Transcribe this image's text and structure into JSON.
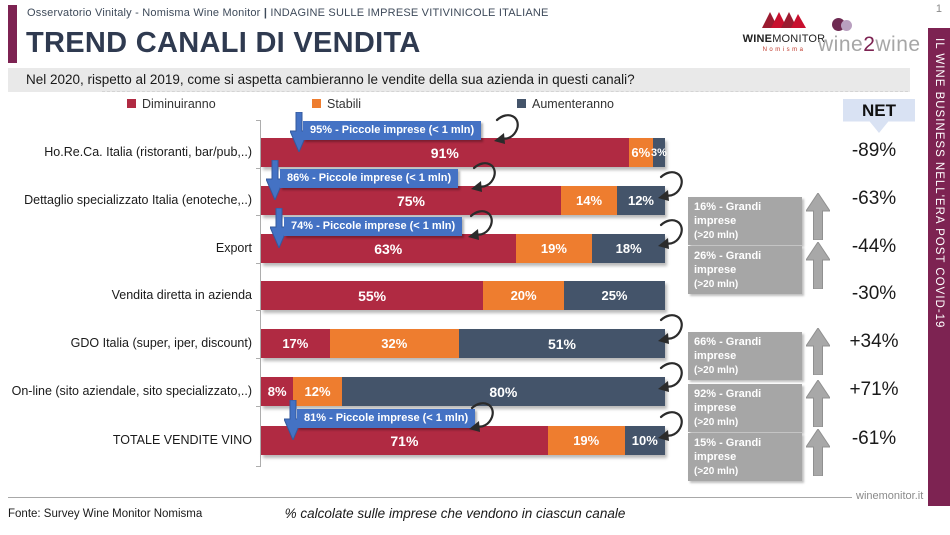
{
  "header": {
    "left": "Osservatorio Vinitaly - Nomisma Wine Monitor",
    "separator": "|",
    "right": "INDAGINE SULLE IMPRESE VITIVINICOLE ITALIANE",
    "page_number": "1"
  },
  "title": "TREND CANALI DI VENDITA",
  "question": "Nel 2020, rispetto al 2019, come si aspetta cambieranno le vendite della sua azienda in questi canali?",
  "logos": {
    "winemonitor": {
      "name_bold": "WINE",
      "name_rest": "MONITOR",
      "subtitle": "Nomisma"
    },
    "wine2wine": {
      "part1": "wine",
      "part2": "2",
      "part3": "wine"
    }
  },
  "sidebar": {
    "text": "IL WINE BUSINESS NELL'ERA POST COVID-19"
  },
  "net_header": "NET",
  "legend": [
    {
      "label": "Diminuiranno",
      "color": "#B02A42"
    },
    {
      "label": "Stabili",
      "color": "#EE7D2F"
    },
    {
      "label": "Aumenteranno",
      "color": "#44546A"
    }
  ],
  "chart_data": {
    "type": "bar",
    "orientation": "horizontal",
    "stacked": true,
    "unit": "percent",
    "xlim": [
      0,
      100
    ],
    "categories": [
      "Ho.Re.Ca. Italia (ristoranti, bar/pub,..)",
      "Dettaglio specializzato Italia (enoteche,..)",
      "Export",
      "Vendita diretta in azienda",
      "GDO Italia (super, iper, discount)",
      "On-line (sito aziendale, sito specializzato,..)",
      "TOTALE VENDITE VINO"
    ],
    "series": [
      {
        "name": "Diminuiranno",
        "color": "#B02A42",
        "values": [
          91,
          75,
          63,
          55,
          17,
          8,
          71
        ]
      },
      {
        "name": "Stabili",
        "color": "#EE7D2F",
        "values": [
          6,
          14,
          19,
          20,
          32,
          12,
          19
        ]
      },
      {
        "name": "Aumenteranno",
        "color": "#44546A",
        "values": [
          3,
          12,
          18,
          25,
          51,
          80,
          10
        ]
      }
    ],
    "net_values": [
      "-89%",
      "-63%",
      "-44%",
      "-30%",
      "+34%",
      "+71%",
      "-61%"
    ],
    "small_firm_callouts": [
      {
        "row": 0,
        "text": "95% - Piccole imprese (< 1 mln)"
      },
      {
        "row": 1,
        "text": "86% - Piccole imprese (< 1 mln)"
      },
      {
        "row": 2,
        "text": "74% - Piccole imprese (< 1 mln)"
      },
      {
        "row": 6,
        "text": "81% - Piccole imprese (< 1 mln)"
      }
    ],
    "large_firm_callouts": [
      {
        "row": 1,
        "line1": "16% - Grandi imprese",
        "line2": "(>20 mln)"
      },
      {
        "row": 2,
        "line1": "26% - Grandi imprese",
        "line2": "(>20 mln)"
      },
      {
        "row": 4,
        "line1": "66% - Grandi imprese",
        "line2": "(>20 mln)"
      },
      {
        "row": 5,
        "line1": "92% - Grandi imprese",
        "line2": "(>20 mln)"
      },
      {
        "row": 6,
        "line1": "15% - Grandi imprese",
        "line2": "(>20 mln)"
      }
    ]
  },
  "footer": {
    "source": "Fonte: Survey Wine Monitor Nomisma",
    "note": "% calcolate sulle imprese che vendono in ciascun canale",
    "site": "winemonitor.it"
  },
  "colors": {
    "accent_plum": "#7D2352",
    "callout_blue": "#4472C4",
    "callout_gray": "#A6A6A6",
    "net_banner": "#D9E2F3"
  }
}
